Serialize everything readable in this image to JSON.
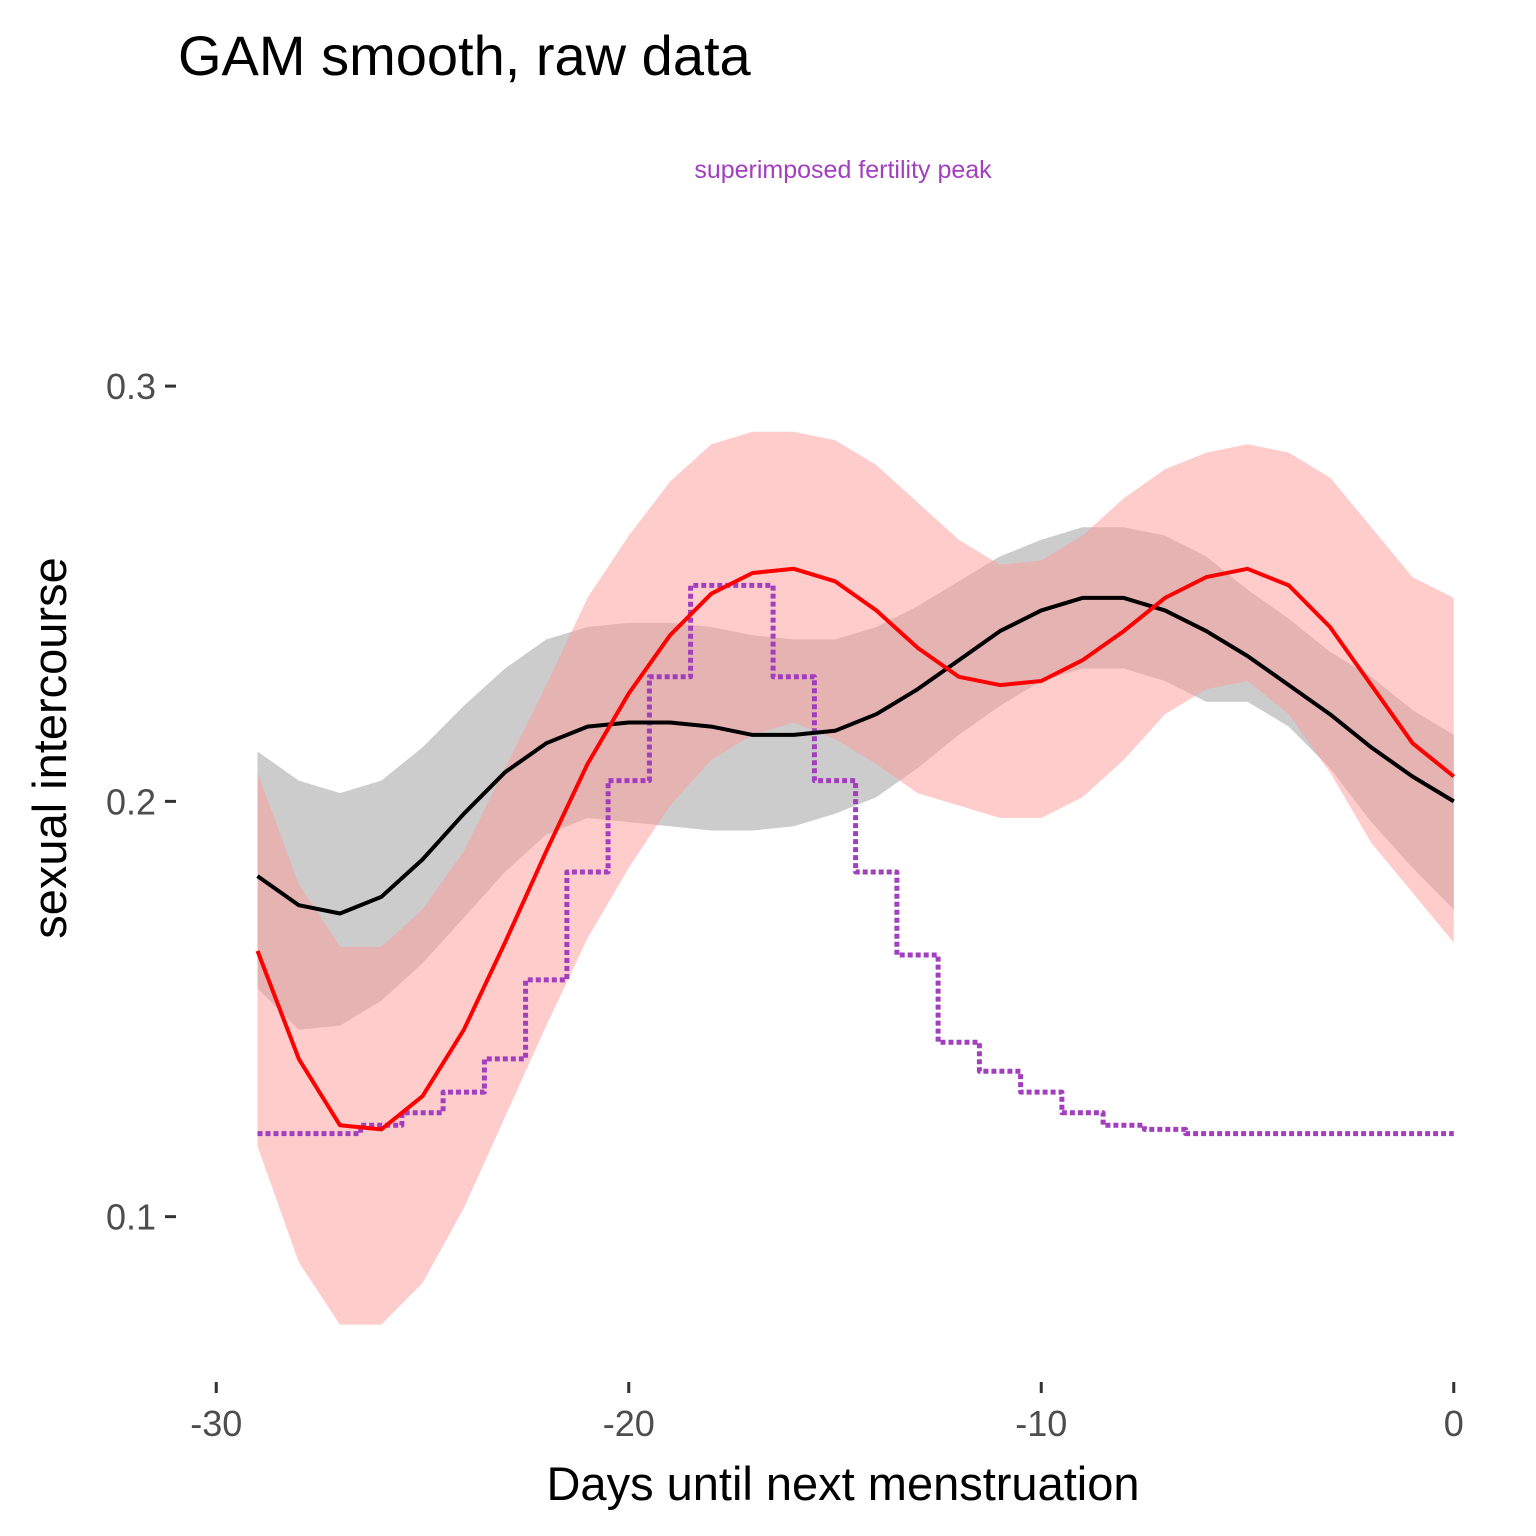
{
  "chart_data": {
    "type": "line",
    "title": "GAM smooth, raw data",
    "annotation": "superimposed fertility peak",
    "xlabel": "Days until next menstruation",
    "ylabel": "sexual intercourse",
    "xlim": [
      -31,
      0.2
    ],
    "ylim": [
      0.065,
      0.34
    ],
    "x_ticks": [
      {
        "value": -30,
        "label": "-30"
      },
      {
        "value": -20,
        "label": "-20"
      },
      {
        "value": -10,
        "label": "-10"
      },
      {
        "value": 0,
        "label": "0"
      }
    ],
    "y_ticks": [
      {
        "value": 0.1,
        "label": "0.1"
      },
      {
        "value": 0.2,
        "label": "0.2"
      },
      {
        "value": 0.3,
        "label": "0.3"
      }
    ],
    "grid": false,
    "series": [
      {
        "color": "#000000",
        "band_color": "#999999",
        "band_opacity": 0.5,
        "x": [
          -29,
          -28,
          -27,
          -26,
          -25,
          -24,
          -23,
          -22,
          -21,
          -20,
          -19,
          -18,
          -17,
          -16,
          -15,
          -14,
          -13,
          -12,
          -11,
          -10,
          -9,
          -8,
          -7,
          -6,
          -5,
          -4,
          -3,
          -2,
          -1,
          0
        ],
        "y": [
          0.182,
          0.175,
          0.173,
          0.177,
          0.186,
          0.197,
          0.207,
          0.214,
          0.218,
          0.219,
          0.219,
          0.218,
          0.216,
          0.216,
          0.217,
          0.221,
          0.227,
          0.234,
          0.241,
          0.246,
          0.249,
          0.249,
          0.246,
          0.241,
          0.235,
          0.228,
          0.221,
          0.213,
          0.206,
          0.2
        ],
        "lower": [
          0.155,
          0.145,
          0.146,
          0.152,
          0.161,
          0.172,
          0.183,
          0.192,
          0.196,
          0.195,
          0.194,
          0.193,
          0.193,
          0.194,
          0.197,
          0.201,
          0.208,
          0.216,
          0.223,
          0.229,
          0.232,
          0.232,
          0.229,
          0.224,
          0.224,
          0.218,
          0.208,
          0.195,
          0.184,
          0.174
        ],
        "upper": [
          0.212,
          0.205,
          0.202,
          0.205,
          0.213,
          0.223,
          0.232,
          0.239,
          0.242,
          0.243,
          0.243,
          0.242,
          0.24,
          0.239,
          0.239,
          0.242,
          0.247,
          0.253,
          0.259,
          0.263,
          0.266,
          0.266,
          0.264,
          0.259,
          0.251,
          0.244,
          0.236,
          0.23,
          0.222,
          0.216
        ]
      },
      {
        "color": "#ff0000",
        "band_color": "#ff9999",
        "band_opacity": 0.5,
        "x": [
          -29,
          -28,
          -27,
          -26,
          -25,
          -24,
          -23,
          -22,
          -21,
          -20,
          -19,
          -18,
          -17,
          -16,
          -15,
          -14,
          -13,
          -12,
          -11,
          -10,
          -9,
          -8,
          -7,
          -6,
          -5,
          -4,
          -3,
          -2,
          -1,
          0
        ],
        "y": [
          0.164,
          0.138,
          0.122,
          0.121,
          0.129,
          0.145,
          0.166,
          0.188,
          0.209,
          0.226,
          0.24,
          0.25,
          0.255,
          0.256,
          0.253,
          0.246,
          0.237,
          0.23,
          0.228,
          0.229,
          0.234,
          0.241,
          0.249,
          0.254,
          0.256,
          0.252,
          0.242,
          0.228,
          0.214,
          0.206
        ],
        "lower": [
          0.117,
          0.089,
          0.074,
          0.074,
          0.084,
          0.102,
          0.124,
          0.146,
          0.167,
          0.184,
          0.199,
          0.21,
          0.216,
          0.219,
          0.215,
          0.209,
          0.202,
          0.199,
          0.196,
          0.196,
          0.201,
          0.21,
          0.221,
          0.227,
          0.229,
          0.221,
          0.207,
          0.19,
          0.178,
          0.166
        ],
        "upper": [
          0.207,
          0.18,
          0.165,
          0.165,
          0.174,
          0.188,
          0.208,
          0.228,
          0.249,
          0.264,
          0.277,
          0.286,
          0.289,
          0.289,
          0.287,
          0.281,
          0.272,
          0.263,
          0.257,
          0.258,
          0.264,
          0.273,
          0.28,
          0.284,
          0.286,
          0.284,
          0.278,
          0.266,
          0.254,
          0.249
        ]
      },
      {
        "color": "#a23fbf",
        "dashed": true,
        "step": true,
        "x": [
          -29,
          -28,
          -27,
          -26,
          -25,
          -24,
          -23,
          -22,
          -21,
          -20,
          -19,
          -18,
          -17,
          -16,
          -15,
          -14,
          -13,
          -12,
          -11,
          -10,
          -9,
          -8,
          -7,
          -6,
          -5,
          -4,
          -3,
          -2,
          -1,
          0
        ],
        "y": [
          0.12,
          0.12,
          0.12,
          0.122,
          0.125,
          0.13,
          0.138,
          0.157,
          0.183,
          0.205,
          0.23,
          0.252,
          0.252,
          0.23,
          0.205,
          0.183,
          0.163,
          0.142,
          0.135,
          0.13,
          0.125,
          0.122,
          0.121,
          0.12,
          0.12,
          0.12,
          0.12,
          0.12,
          0.12,
          0.12
        ]
      }
    ]
  }
}
